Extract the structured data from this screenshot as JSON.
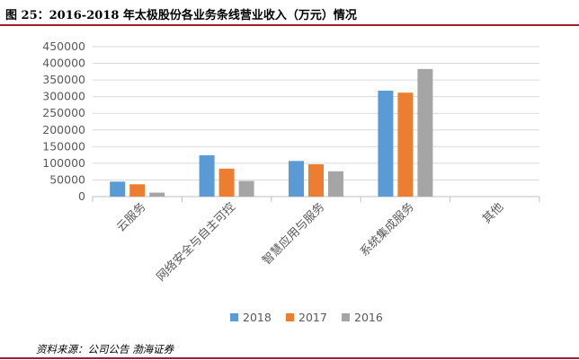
{
  "header": {
    "title": "图 25：2016-2018 年太极股份各业务条线营业收入（万元）情况"
  },
  "footer": {
    "source": "资料来源：公司公告 渤海证券"
  },
  "colors": {
    "rule": "#a11e2b",
    "gridline": "#d9d9d9",
    "axis": "#bfbfbf",
    "text": "#595959"
  },
  "chart_data": {
    "type": "bar",
    "title": "",
    "xlabel": "",
    "ylabel": "",
    "categories": [
      "云服务",
      "网络安全与自主可控",
      "智慧应用与服务",
      "系统集成服务",
      "其他"
    ],
    "yticks": [
      "0",
      "50000",
      "100000",
      "150000",
      "200000",
      "250000",
      "300000",
      "350000",
      "400000",
      "450000"
    ],
    "ylim": [
      0,
      450000
    ],
    "grid": true,
    "legend_position": "bottom",
    "series": [
      {
        "name": "2018",
        "color": "#5b9bd5",
        "values": [
          45000,
          124000,
          107000,
          318000,
          0
        ]
      },
      {
        "name": "2017",
        "color": "#ed7d31",
        "values": [
          37000,
          84000,
          97000,
          312000,
          0
        ]
      },
      {
        "name": "2016",
        "color": "#a5a5a5",
        "values": [
          12000,
          47000,
          76000,
          383000,
          0
        ]
      }
    ]
  }
}
